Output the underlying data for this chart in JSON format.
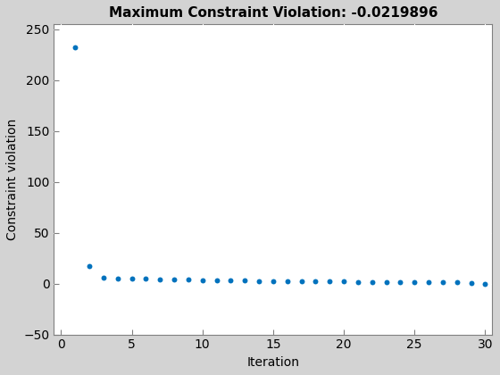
{
  "title": "Maximum Constraint Violation: -0.0219896",
  "xlabel": "Iteration",
  "ylabel": "Constraint violation",
  "xlim": [
    -0.5,
    30.5
  ],
  "ylim": [
    -50,
    255
  ],
  "xticks": [
    0,
    5,
    10,
    15,
    20,
    25,
    30
  ],
  "yticks": [
    -50,
    0,
    50,
    100,
    150,
    200,
    250
  ],
  "scatter_color": "#0072BD",
  "figure_facecolor": "#D3D3D3",
  "axes_facecolor": "#FFFFFF",
  "x_values": [
    1,
    2,
    3,
    4,
    5,
    6,
    7,
    8,
    9,
    10,
    11,
    12,
    13,
    14,
    15,
    16,
    17,
    18,
    19,
    20,
    21,
    22,
    23,
    24,
    25,
    26,
    27,
    28,
    29,
    30
  ],
  "y_values": [
    232,
    17,
    5.5,
    5.2,
    5.0,
    4.8,
    4.5,
    4.2,
    3.8,
    3.5,
    3.2,
    3.0,
    2.9,
    2.7,
    2.5,
    2.4,
    2.3,
    2.2,
    2.1,
    2.0,
    1.9,
    1.8,
    1.7,
    1.6,
    1.5,
    1.4,
    1.3,
    1.2,
    1.0,
    -0.02
  ],
  "marker_size": 18,
  "grid_color": "#FFFFFF",
  "grid_linewidth": 0.8,
  "title_fontsize": 11,
  "label_fontsize": 10,
  "tick_fontsize": 10,
  "spine_color": "#808080",
  "axes_linewidth": 0.8
}
